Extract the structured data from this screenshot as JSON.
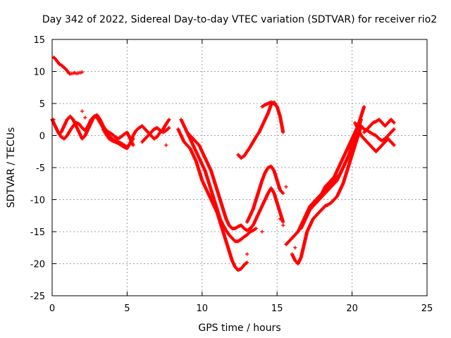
{
  "chart_data": {
    "type": "scatter",
    "title": "Day 342 of 2022, Sidereal Day-to-day VTEC variation (SDTVAR) for receiver rio2",
    "xlabel": "GPS time / hours",
    "ylabel": "SDTVAR / TECUs",
    "xlim": [
      0,
      25
    ],
    "ylim": [
      -25,
      15
    ],
    "xticks": [
      0,
      5,
      10,
      15,
      20,
      25
    ],
    "yticks": [
      -25,
      -20,
      -15,
      -10,
      -5,
      0,
      5,
      10,
      15
    ],
    "xtick_labels": [
      "0",
      "5",
      "10",
      "15",
      "20",
      "25"
    ],
    "ytick_labels": [
      "-25",
      "-20",
      "-15",
      "-10",
      "-5",
      "0",
      "5",
      "10",
      "15"
    ],
    "grid": true,
    "legend": "none",
    "marker_color": "#ff0000",
    "series": [
      {
        "x": [
          0.1,
          0.2,
          0.3,
          0.4,
          0.5,
          0.6,
          0.7,
          0.8,
          0.9,
          1.0,
          1.1,
          1.2,
          1.3,
          1.4,
          1.5,
          1.6,
          1.7,
          1.8,
          1.9,
          2.0
        ],
        "y": [
          12.2,
          12.0,
          11.7,
          11.4,
          11.1,
          11.0,
          10.8,
          10.6,
          10.4,
          10.1,
          9.8,
          9.6,
          9.7,
          9.7,
          9.8,
          9.7,
          9.7,
          9.8,
          9.8,
          9.9
        ]
      },
      {
        "x": [
          0.0,
          0.2,
          0.4,
          0.6,
          0.8,
          1.0,
          1.2,
          1.4,
          1.6,
          1.8,
          2.0,
          2.2,
          2.4,
          2.6,
          2.8,
          3.0,
          3.2,
          3.4,
          3.6,
          3.8,
          4.0,
          4.2,
          4.4,
          4.6,
          4.8,
          5.0,
          5.2,
          5.4
        ],
        "y": [
          2.5,
          1.5,
          0.5,
          -0.2,
          -0.5,
          0.0,
          0.8,
          1.5,
          2.0,
          1.8,
          1.2,
          0.8,
          1.5,
          2.5,
          3.0,
          2.8,
          2.0,
          1.2,
          0.5,
          0.0,
          -0.5,
          -0.8,
          -1.0,
          -1.2,
          -1.5,
          -1.8,
          -1.2,
          -0.5
        ]
      },
      {
        "x": [
          0.6,
          0.8,
          1.0,
          1.2,
          1.4,
          1.6,
          1.8,
          2.0,
          2.2,
          2.4,
          2.6,
          2.8,
          3.0,
          3.2,
          3.4,
          3.6,
          3.8,
          4.0,
          4.2,
          4.4,
          4.6,
          4.8,
          5.0,
          5.2,
          5.4
        ],
        "y": [
          0.5,
          1.5,
          2.5,
          3.0,
          2.5,
          1.5,
          0.5,
          -0.5,
          0.0,
          1.0,
          2.0,
          3.0,
          3.2,
          2.5,
          1.5,
          0.8,
          0.5,
          0.2,
          -0.2,
          -0.5,
          -0.2,
          0.2,
          0.5,
          -0.5,
          -1.5
        ]
      },
      {
        "x": [
          3.4,
          3.6,
          3.8,
          4.0,
          4.2,
          4.4,
          4.6,
          4.8,
          5.0,
          5.2,
          5.4,
          5.6,
          5.8,
          6.0,
          6.2,
          6.4,
          6.6,
          6.8,
          7.0,
          7.2,
          7.4,
          7.6,
          7.8
        ],
        "y": [
          1.0,
          0.2,
          -0.5,
          -0.8,
          -1.0,
          -1.2,
          -1.5,
          -1.8,
          -2.0,
          -1.2,
          0.0,
          0.8,
          1.2,
          1.5,
          1.0,
          0.5,
          0.0,
          -0.5,
          -0.2,
          0.5,
          1.0,
          1.8,
          2.5
        ]
      },
      {
        "x": [
          6.0,
          6.2,
          6.4,
          6.6,
          6.8,
          7.0,
          7.2,
          7.4,
          7.6,
          7.8
        ],
        "y": [
          -1.0,
          -0.5,
          0.0,
          0.5,
          1.0,
          1.2,
          0.8,
          0.5,
          0.8,
          1.2
        ]
      },
      {
        "x": [
          8.4,
          8.6,
          8.8,
          9.0,
          9.2,
          9.4,
          9.6,
          9.8,
          10.0,
          10.2,
          10.4,
          10.6,
          10.8,
          11.0,
          11.2,
          11.4,
          11.6,
          11.8,
          12.0,
          12.2,
          12.4,
          12.6,
          12.8,
          13.0
        ],
        "y": [
          1.0,
          0.0,
          -1.0,
          -1.5,
          -2.0,
          -3.0,
          -4.0,
          -5.5,
          -7.0,
          -8.0,
          -9.0,
          -10.0,
          -11.0,
          -12.0,
          -13.5,
          -15.0,
          -16.5,
          -18.0,
          -19.5,
          -20.5,
          -21.0,
          -20.8,
          -20.2,
          -19.8
        ]
      },
      {
        "x": [
          8.6,
          8.8,
          9.0,
          9.2,
          9.4,
          9.6,
          9.8,
          10.0,
          10.2,
          10.4,
          10.6,
          10.8,
          11.0,
          11.2,
          11.4,
          11.6,
          11.8,
          12.0,
          12.2,
          12.4,
          12.6,
          12.8,
          13.0,
          13.2,
          13.4,
          13.6
        ],
        "y": [
          2.5,
          1.5,
          0.5,
          -0.5,
          -1.5,
          -2.5,
          -3.5,
          -4.5,
          -5.5,
          -7.0,
          -8.5,
          -10.0,
          -11.5,
          -13.0,
          -14.0,
          -14.8,
          -15.5,
          -16.0,
          -16.5,
          -16.5,
          -16.2,
          -15.8,
          -15.5,
          -15.0,
          -14.8,
          -14.5
        ]
      },
      {
        "x": [
          9.0,
          9.2,
          9.4,
          9.6,
          9.8,
          10.0,
          10.2,
          10.4,
          10.6,
          10.8,
          11.0,
          11.2,
          11.4,
          11.6,
          11.8,
          12.0,
          12.2,
          12.4,
          12.6,
          12.8,
          13.0,
          13.2,
          13.4,
          13.6,
          13.8,
          14.0,
          14.2,
          14.4,
          14.6,
          14.8,
          15.0,
          15.2,
          15.4
        ],
        "y": [
          0.5,
          0.0,
          -0.5,
          -1.0,
          -1.5,
          -2.5,
          -3.5,
          -4.5,
          -5.5,
          -7.0,
          -8.5,
          -10.0,
          -11.5,
          -13.0,
          -14.0,
          -14.5,
          -14.5,
          -14.2,
          -14.0,
          -14.5,
          -14.8,
          -14.5,
          -14.0,
          -13.0,
          -12.0,
          -11.0,
          -10.0,
          -9.0,
          -8.2,
          -9.0,
          -10.5,
          -12.0,
          -13.5
        ]
      },
      {
        "x": [
          13.0,
          13.2,
          13.4,
          13.6,
          13.8,
          14.0,
          14.2,
          14.4,
          14.6,
          14.8,
          15.0,
          15.2,
          15.4
        ],
        "y": [
          -13.5,
          -12.5,
          -11.5,
          -10.0,
          -8.5,
          -7.0,
          -5.8,
          -5.0,
          -4.8,
          -5.5,
          -7.0,
          -8.5,
          -9.0
        ]
      },
      {
        "x": [
          12.4,
          12.6,
          12.8,
          13.0,
          13.2,
          13.4,
          13.6,
          13.8,
          14.0,
          14.2,
          14.4,
          14.6,
          14.8,
          15.0,
          15.2,
          15.4
        ],
        "y": [
          -3.0,
          -3.5,
          -3.2,
          -2.5,
          -1.8,
          -1.0,
          -0.2,
          0.5,
          1.5,
          2.5,
          3.5,
          4.8,
          5.2,
          4.5,
          3.0,
          0.5
        ]
      },
      {
        "x": [
          14.0,
          14.2,
          14.4,
          14.6,
          14.8,
          15.0
        ],
        "y": [
          4.5,
          4.8,
          5.0,
          5.2,
          5.0,
          4.5
        ]
      },
      {
        "x": [
          15.6,
          15.8,
          16.0,
          16.2,
          16.4,
          16.6,
          16.8,
          17.0,
          17.2,
          17.4,
          17.6,
          17.8,
          18.0,
          18.2,
          18.4,
          18.6,
          18.8,
          19.0,
          19.2,
          19.4,
          19.6,
          19.8,
          20.0,
          20.2,
          20.4,
          20.6,
          20.8
        ],
        "y": [
          -17.0,
          -16.5,
          -16.0,
          -15.5,
          -15.0,
          -14.0,
          -13.0,
          -12.0,
          -11.5,
          -11.0,
          -10.5,
          -10.0,
          -9.5,
          -9.0,
          -8.5,
          -8.0,
          -7.5,
          -7.0,
          -6.0,
          -5.0,
          -4.0,
          -3.0,
          -1.5,
          0.0,
          1.5,
          3.0,
          4.5
        ]
      },
      {
        "x": [
          16.0,
          16.2,
          16.4,
          16.6,
          16.8,
          17.0,
          17.2,
          17.4,
          17.6,
          17.8,
          18.0,
          18.2,
          18.4,
          18.6,
          18.8,
          19.0,
          19.2,
          19.4,
          19.6,
          19.8,
          20.0,
          20.2,
          20.4,
          20.6
        ],
        "y": [
          -18.5,
          -19.5,
          -20.0,
          -19.0,
          -17.0,
          -15.0,
          -14.0,
          -13.0,
          -12.5,
          -12.0,
          -11.5,
          -11.0,
          -10.8,
          -10.5,
          -10.0,
          -9.5,
          -8.5,
          -7.5,
          -6.0,
          -4.5,
          -3.0,
          -1.5,
          0.0,
          1.5
        ]
      },
      {
        "x": [
          16.6,
          16.8,
          17.0,
          17.2,
          17.4,
          17.6,
          17.8,
          18.0,
          18.2,
          18.4,
          18.6,
          18.8,
          19.0,
          19.2,
          19.4,
          19.6,
          19.8,
          20.0,
          20.2,
          20.4,
          20.6
        ],
        "y": [
          -14.5,
          -13.5,
          -12.5,
          -11.5,
          -11.0,
          -10.5,
          -10.0,
          -9.0,
          -8.5,
          -8.0,
          -7.5,
          -7.0,
          -6.5,
          -6.0,
          -5.0,
          -4.0,
          -3.0,
          -2.0,
          -0.5,
          1.0,
          2.5
        ]
      },
      {
        "x": [
          17.0,
          17.2,
          17.4,
          17.6,
          17.8,
          18.0,
          18.2,
          18.4,
          18.6,
          18.8,
          19.0,
          19.2,
          19.4,
          19.6,
          19.8,
          20.0,
          20.2,
          20.4
        ],
        "y": [
          -12.0,
          -11.0,
          -10.5,
          -10.0,
          -9.5,
          -9.0,
          -8.0,
          -7.5,
          -7.0,
          -6.5,
          -5.5,
          -4.5,
          -3.5,
          -2.5,
          -1.5,
          -0.5,
          0.5,
          1.5
        ]
      },
      {
        "x": [
          20.2,
          20.4,
          20.6,
          20.8,
          21.0,
          21.2,
          21.4,
          21.6,
          21.8,
          22.0,
          22.2,
          22.4,
          22.6,
          22.8
        ],
        "y": [
          2.0,
          1.0,
          0.0,
          -0.5,
          -1.0,
          -1.5,
          -2.0,
          -2.5,
          -2.0,
          -1.5,
          -1.0,
          -0.5,
          -1.0,
          -1.5
        ]
      },
      {
        "x": [
          20.6,
          20.8,
          21.0,
          21.2,
          21.4,
          21.6,
          21.8,
          22.0,
          22.2,
          22.4,
          22.6,
          22.8
        ],
        "y": [
          1.5,
          1.0,
          0.8,
          0.5,
          0.2,
          0.0,
          -0.5,
          -0.8,
          -0.5,
          0.0,
          0.5,
          1.0
        ]
      },
      {
        "x": [
          20.8,
          21.0,
          21.2,
          21.4,
          21.6,
          21.8,
          22.0,
          22.2,
          22.4,
          22.6,
          22.8
        ],
        "y": [
          0.5,
          1.0,
          1.5,
          2.0,
          2.2,
          2.5,
          2.0,
          1.5,
          2.0,
          2.5,
          2.0
        ]
      },
      {
        "x": [
          0.1,
          2.0,
          2.2,
          7.6,
          15.6,
          16.2,
          15.4,
          15.2,
          13.0,
          14.0
        ],
        "y": [
          2.5,
          3.8,
          2.8,
          -1.5,
          -8.0,
          -17.5,
          -14.0,
          -13.0,
          -18.5,
          -15.0
        ]
      }
    ]
  }
}
